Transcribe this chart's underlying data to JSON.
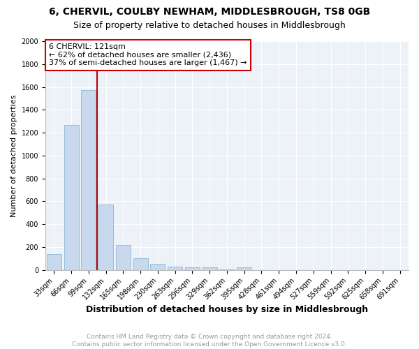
{
  "title": "6, CHERVIL, COULBY NEWHAM, MIDDLESBROUGH, TS8 0GB",
  "subtitle": "Size of property relative to detached houses in Middlesbrough",
  "xlabel": "Distribution of detached houses by size in Middlesbrough",
  "ylabel": "Number of detached properties",
  "categories": [
    "33sqm",
    "66sqm",
    "99sqm",
    "132sqm",
    "165sqm",
    "198sqm",
    "230sqm",
    "263sqm",
    "296sqm",
    "329sqm",
    "362sqm",
    "395sqm",
    "428sqm",
    "461sqm",
    "494sqm",
    "527sqm",
    "559sqm",
    "592sqm",
    "625sqm",
    "658sqm",
    "691sqm"
  ],
  "values": [
    140,
    1270,
    1570,
    570,
    220,
    100,
    55,
    30,
    20,
    20,
    5,
    20,
    0,
    0,
    0,
    0,
    0,
    0,
    0,
    0,
    0
  ],
  "bar_color": "#c8d9ee",
  "bar_edge_color": "#7aadd4",
  "vline_x": 2.5,
  "vline_color": "#bb0000",
  "annotation_text": "6 CHERVIL: 121sqm\n← 62% of detached houses are smaller (2,436)\n37% of semi-detached houses are larger (1,467) →",
  "annotation_box_color": "#cc0000",
  "ylim": [
    0,
    2000
  ],
  "yticks": [
    0,
    200,
    400,
    600,
    800,
    1000,
    1200,
    1400,
    1600,
    1800,
    2000
  ],
  "bg_color": "#edf1f8",
  "footer_text": "Contains HM Land Registry data © Crown copyright and database right 2024.\nContains public sector information licensed under the Open Government Licence v3.0.",
  "title_fontsize": 10,
  "subtitle_fontsize": 9,
  "xlabel_fontsize": 9,
  "ylabel_fontsize": 8,
  "tick_fontsize": 7,
  "footer_fontsize": 6.5,
  "annotation_fontsize": 8
}
